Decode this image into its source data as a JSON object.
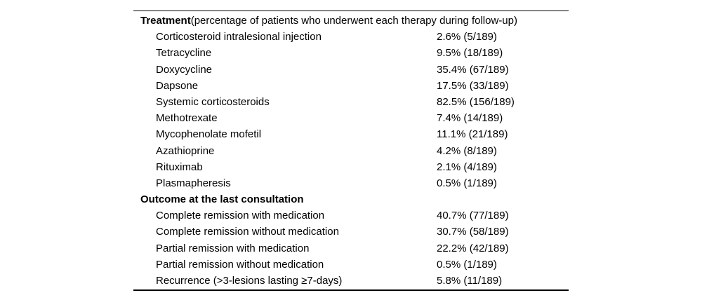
{
  "table": {
    "sample_size": "189",
    "sections": [
      {
        "title": "Treatment",
        "subtitle": " (percentage of patients who underwent each therapy during follow-up)",
        "rows": [
          {
            "label": "Corticosteroid intralesional injection",
            "value": "2.6% (5/189)"
          },
          {
            "label": "Tetracycline",
            "value": "9.5% (18/189)"
          },
          {
            "label": "Doxycycline",
            "value": "35.4% (67/189)"
          },
          {
            "label": "Dapsone",
            "value": "17.5% (33/189)"
          },
          {
            "label": "Systemic corticosteroids",
            "value": "82.5% (156/189)"
          },
          {
            "label": "Methotrexate",
            "value": "7.4% (14/189)"
          },
          {
            "label": "Mycophenolate mofetil",
            "value": "11.1% (21/189)"
          },
          {
            "label": "Azathioprine",
            "value": "4.2% (8/189)"
          },
          {
            "label": "Rituximab",
            "value": "2.1% (4/189)"
          },
          {
            "label": "Plasmapheresis",
            "value": "0.5% (1/189)"
          }
        ]
      },
      {
        "title": "Outcome at the last consultation",
        "subtitle": "",
        "rows": [
          {
            "label": "Complete remission with medication",
            "value": "40.7% (77/189)"
          },
          {
            "label": "Complete remission without medication",
            "value": "30.7% (58/189)"
          },
          {
            "label": "Partial remission with medication",
            "value": "22.2% (42/189)"
          },
          {
            "label": "Partial remission without medication",
            "value": "0.5% (1/189)"
          },
          {
            "label": "Recurrence (>3-lesions lasting ≥7-days)",
            "value": "5.8% (11/189)"
          }
        ]
      }
    ],
    "colors": {
      "text": "#000000",
      "background": "#ffffff",
      "rule": "#000000"
    }
  }
}
